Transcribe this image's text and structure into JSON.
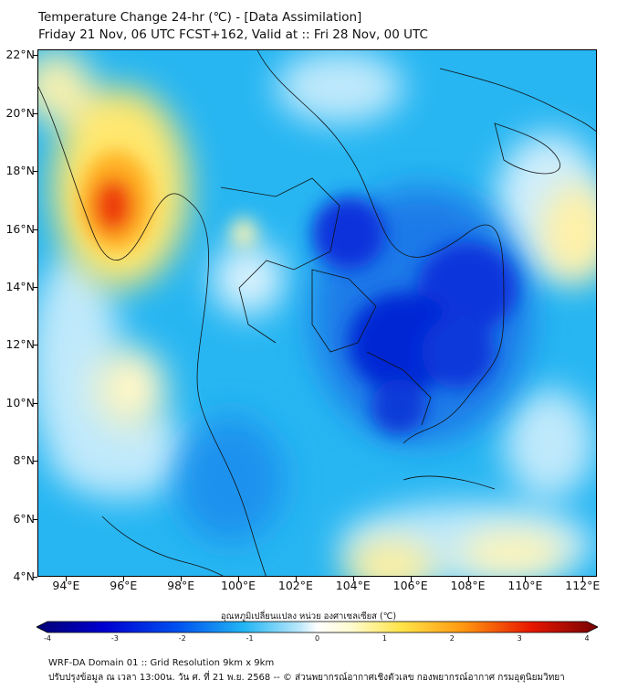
{
  "header": {
    "title": "Temperature Change 24-hr (℃) - [Data Assimilation]",
    "subtitle": "Friday 21 Nov, 06 UTC FCST+162, Valid at :: Fri 28 Nov, 00 UTC"
  },
  "map": {
    "lon_labels": [
      "94°E",
      "96°E",
      "98°E",
      "100°E",
      "102°E",
      "104°E",
      "106°E",
      "108°E",
      "110°E",
      "112°E"
    ],
    "lat_labels": [
      "22°N",
      "20°N",
      "18°N",
      "16°N",
      "14°N",
      "12°N",
      "10°N",
      "8°N",
      "6°N",
      "4°N"
    ],
    "lon_range": [
      93,
      112.5
    ],
    "lat_range": [
      4,
      22.2
    ],
    "field": "24-hr temperature change",
    "colors": {
      "strong_cooling": "#0000d8",
      "cooling": "#1aa8f0",
      "neutral": "#e6f6ff",
      "warming": "#ffe040",
      "strong_warming": "#e81800"
    }
  },
  "colorbar": {
    "label": "อุณหภูมิเปลี่ยนแปลง หน่วย องศาเซลเซียส (℃)",
    "ticks": [
      "-4",
      "-3",
      "-2",
      "-1",
      "0",
      "1",
      "2",
      "3",
      "4"
    ],
    "min": -4,
    "max": 4
  },
  "footer": {
    "line1": "WRF-DA Domain 01 :: Grid Resolution 9km x 9km",
    "line2": "ปรับปรุงข้อมูล ณ เวลา 13:00น. วัน ศ. ที่ 21 พ.ย. 2568 -- © ส่วนพยากรณ์อากาศเชิงตัวเลข กองพยากรณ์อากาศ กรมอุตุนิยมวิทยา"
  }
}
